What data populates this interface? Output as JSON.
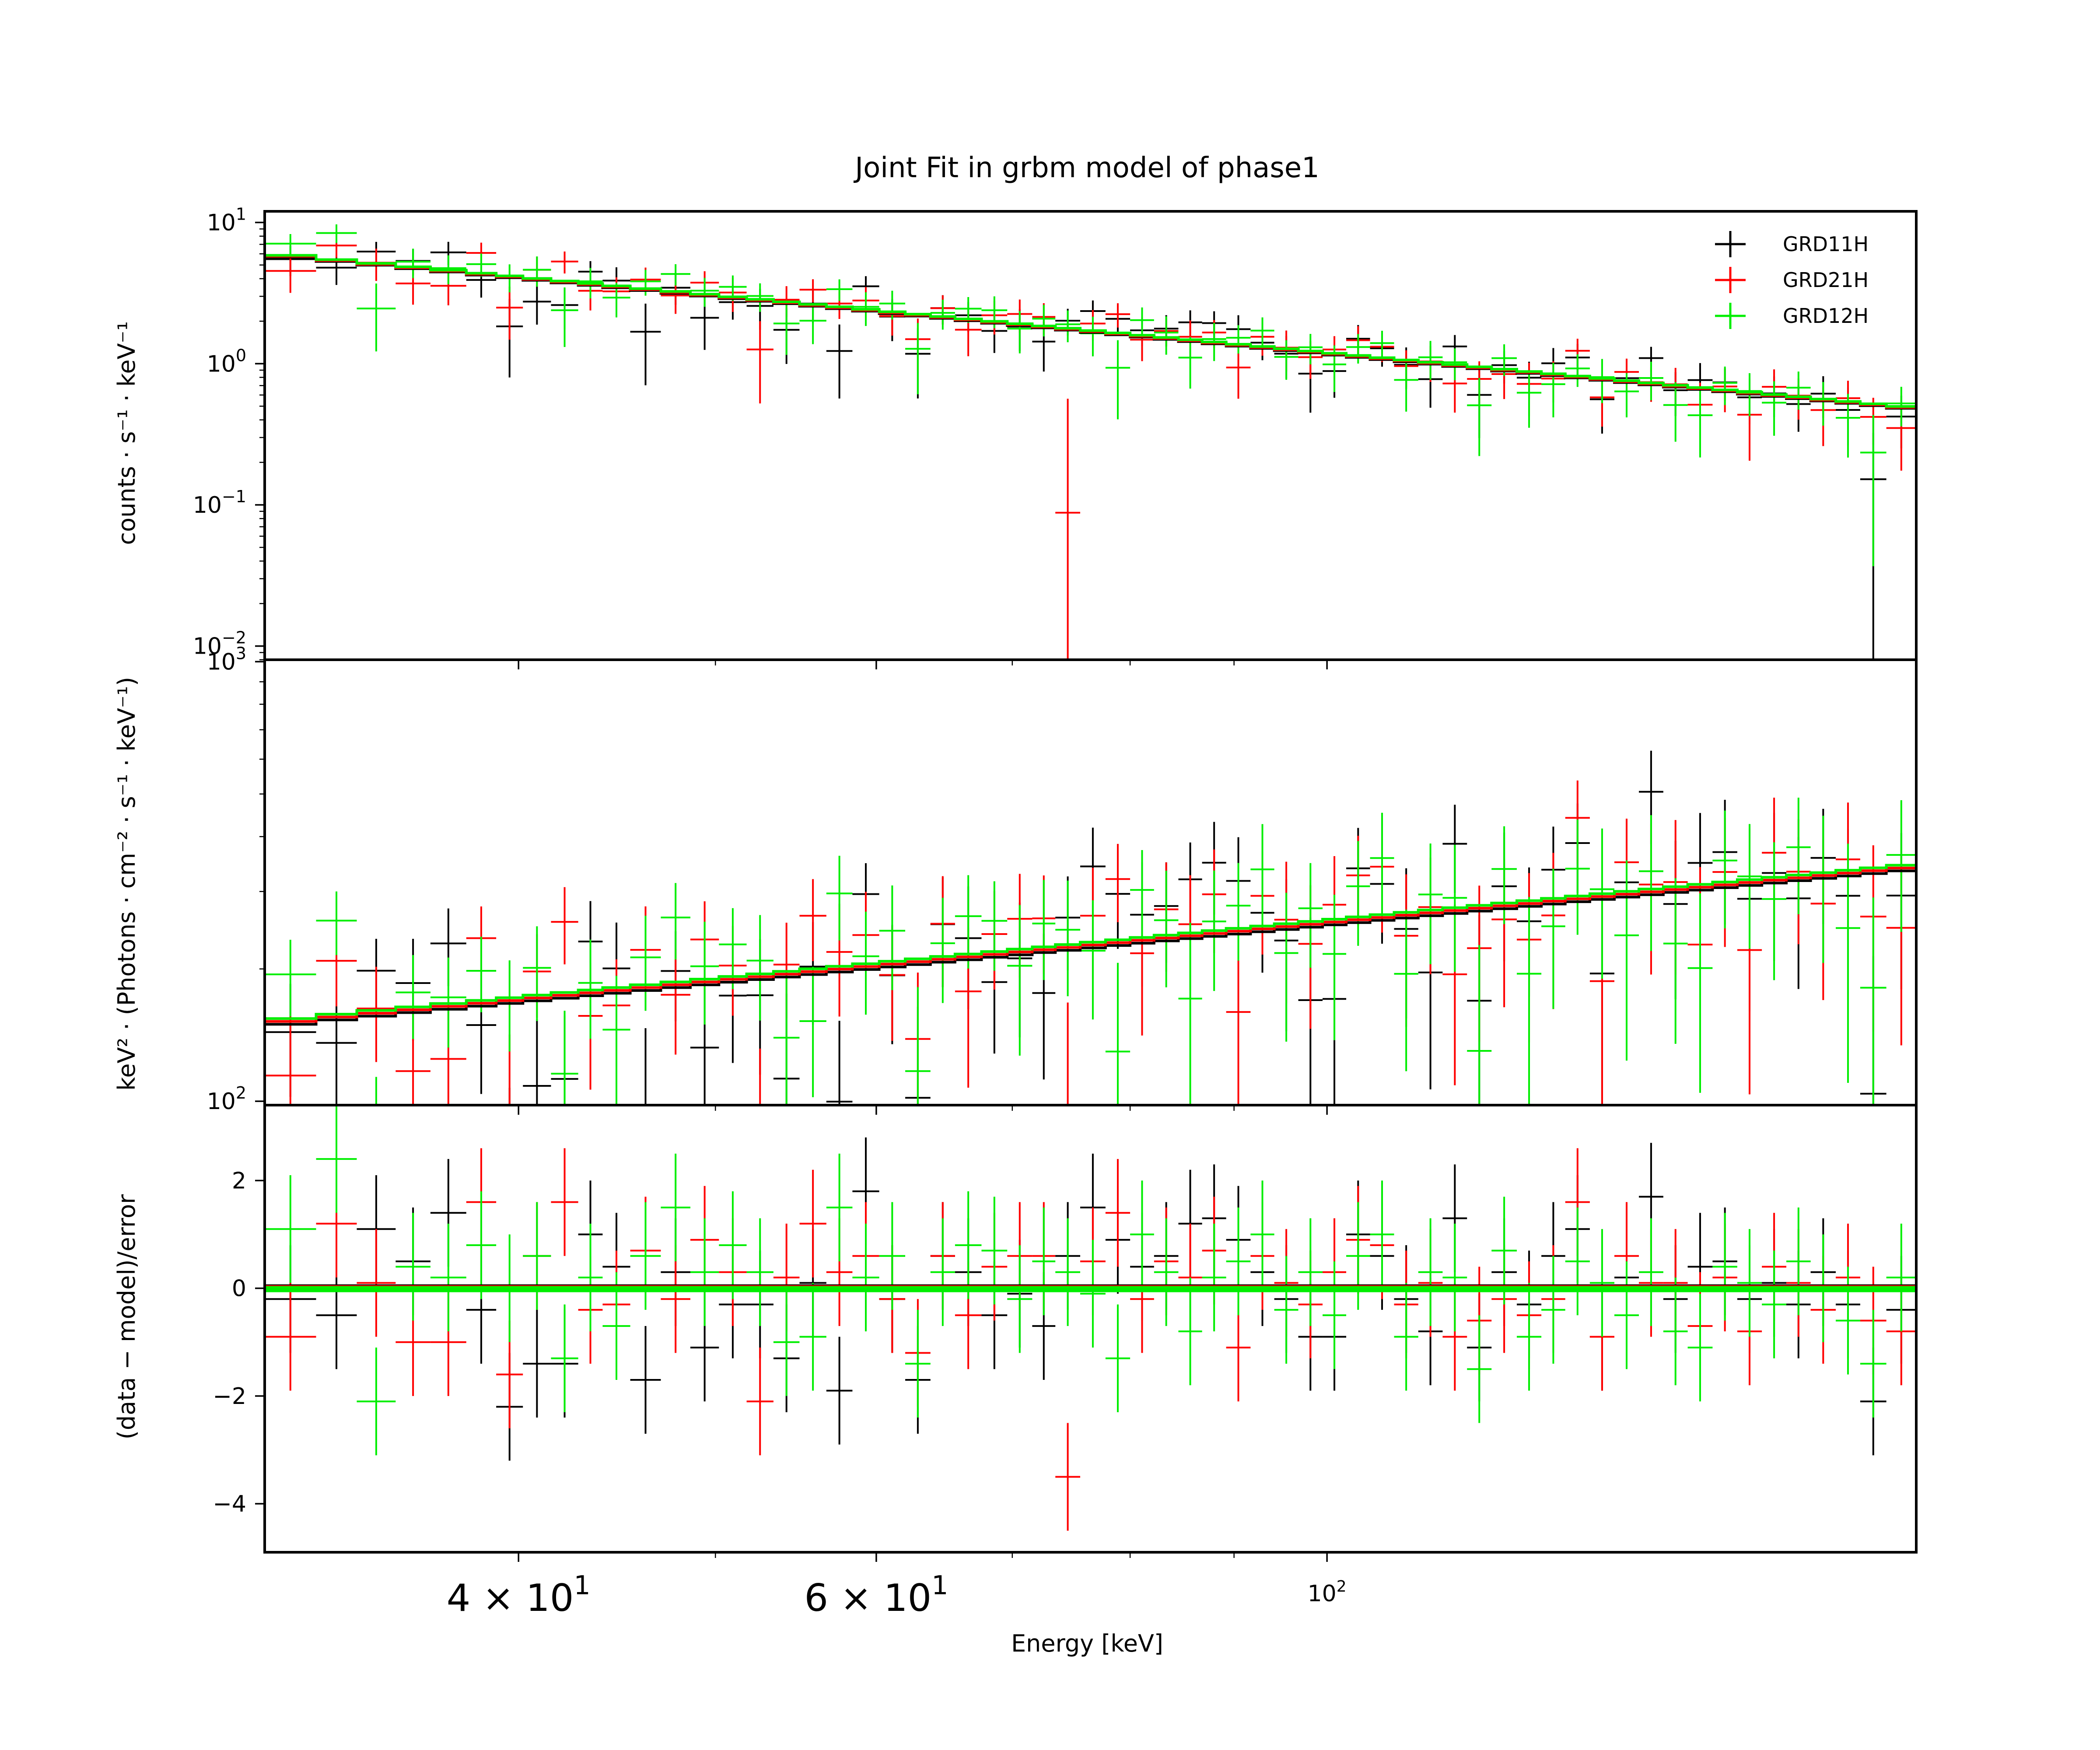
{
  "chart_data": {
    "type": "scatter",
    "title": "Joint Fit  in grbm model of phase1",
    "xlabel": "Energy [keV]",
    "xscale": "log",
    "xlim": [
      30,
      195
    ],
    "x_tick_labels": [
      {
        "value": 40,
        "label": "4 × 10",
        "exp": "1",
        "size": "large"
      },
      {
        "value": 60,
        "label": "6 × 10",
        "exp": "1",
        "size": "large"
      },
      {
        "value": 100,
        "label": "10",
        "exp": "2",
        "size": "small"
      }
    ],
    "legend": {
      "position": "top-right",
      "entries": [
        {
          "label": "GRD11H",
          "color": "#000000"
        },
        {
          "label": "GRD21H",
          "color": "#ff0000"
        },
        {
          "label": "GRD12H",
          "color": "#00ee00"
        }
      ]
    },
    "series_colors": {
      "GRD11H": "#000000",
      "GRD21H": "#ff0000",
      "GRD12H": "#00ee00"
    },
    "panels": [
      {
        "name": "counts",
        "ylabel": "counts · s⁻¹ · keV⁻¹",
        "yscale": "log",
        "ylim": [
          0.008,
          12
        ],
        "y_ticks": [
          {
            "value": 10,
            "label": "10",
            "exp": "1"
          },
          {
            "value": 1,
            "label": "10",
            "exp": "0"
          },
          {
            "value": 0.1,
            "label": "10",
            "exp": "−1"
          },
          {
            "value": 0.01,
            "label": "10",
            "exp": "−2"
          }
        ],
        "model": {
          "type": "powerlaw",
          "norm": 6.0,
          "pivot": 30,
          "index": -1.35
        }
      },
      {
        "name": "unfolded",
        "ylabel": "keV² · (Photons · cm⁻² · s⁻¹ · keV⁻¹)",
        "yscale": "log",
        "ylim": [
          98,
          1010
        ],
        "y_ticks": [
          {
            "value": 1000,
            "label": "10",
            "exp": "3"
          },
          {
            "value": 100,
            "label": "10",
            "exp": "2"
          }
        ],
        "model": {
          "type": "powerlaw",
          "norm": 150,
          "pivot": 30,
          "index": 0.44
        }
      },
      {
        "name": "residuals",
        "ylabel": "(data − model)/error",
        "yscale": "linear",
        "ylim": [
          -4.9,
          3.4
        ],
        "y_ticks": [
          {
            "value": 2,
            "label": "2"
          },
          {
            "value": 0,
            "label": "0"
          },
          {
            "value": -2,
            "label": "−2"
          },
          {
            "value": -4,
            "label": "−4"
          }
        ],
        "model": {
          "type": "zero"
        }
      }
    ],
    "bins": [
      {
        "lo": 30.0,
        "hi": 31.8,
        "res": {
          "GRD11H": -0.2,
          "GRD21H": -0.9,
          "GRD12H": 1.1
        }
      },
      {
        "lo": 31.8,
        "hi": 33.3,
        "res": {
          "GRD11H": -0.5,
          "GRD21H": 1.2,
          "GRD12H": 2.4
        }
      },
      {
        "lo": 33.3,
        "hi": 34.8,
        "res": {
          "GRD11H": 1.1,
          "GRD21H": 0.1,
          "GRD12H": -2.1
        }
      },
      {
        "lo": 34.8,
        "hi": 36.2,
        "res": {
          "GRD11H": 0.5,
          "GRD21H": -1.0,
          "GRD12H": 0.4
        }
      },
      {
        "lo": 36.2,
        "hi": 37.7,
        "res": {
          "GRD11H": 1.4,
          "GRD21H": -1.0,
          "GRD12H": 0.2
        }
      },
      {
        "lo": 37.7,
        "hi": 39.0,
        "res": {
          "GRD11H": -0.4,
          "GRD21H": 1.6,
          "GRD12H": 0.8
        }
      },
      {
        "lo": 39.0,
        "hi": 40.2,
        "res": {
          "GRD11H": -2.2,
          "GRD21H": -1.6,
          "GRD12H": 0.0
        }
      },
      {
        "lo": 40.2,
        "hi": 41.5,
        "res": {
          "GRD11H": -1.4,
          "GRD21H": 0.6,
          "GRD12H": 0.6
        }
      },
      {
        "lo": 41.5,
        "hi": 42.8,
        "res": {
          "GRD11H": -1.4,
          "GRD21H": 1.6,
          "GRD12H": -1.3
        }
      },
      {
        "lo": 42.8,
        "hi": 44.0,
        "res": {
          "GRD11H": 1.0,
          "GRD21H": -0.4,
          "GRD12H": 0.2
        }
      },
      {
        "lo": 44.0,
        "hi": 45.4,
        "res": {
          "GRD11H": 0.4,
          "GRD21H": -0.3,
          "GRD12H": -0.7
        }
      },
      {
        "lo": 45.4,
        "hi": 47.0,
        "res": {
          "GRD11H": -1.7,
          "GRD21H": 0.7,
          "GRD12H": 0.6
        }
      },
      {
        "lo": 47.0,
        "hi": 48.6,
        "res": {
          "GRD11H": 0.3,
          "GRD21H": -0.2,
          "GRD12H": 1.5
        }
      },
      {
        "lo": 48.6,
        "hi": 50.2,
        "res": {
          "GRD11H": -1.1,
          "GRD21H": 0.9,
          "GRD12H": 0.3
        }
      },
      {
        "lo": 50.2,
        "hi": 51.8,
        "res": {
          "GRD11H": -0.3,
          "GRD21H": 0.3,
          "GRD12H": 0.8
        }
      },
      {
        "lo": 51.8,
        "hi": 53.4,
        "res": {
          "GRD11H": -0.3,
          "GRD21H": -2.1,
          "GRD12H": 0.3
        }
      },
      {
        "lo": 53.4,
        "hi": 55.0,
        "res": {
          "GRD11H": -1.3,
          "GRD21H": 0.2,
          "GRD12H": -1.0
        }
      },
      {
        "lo": 55.0,
        "hi": 56.7,
        "res": {
          "GRD11H": 0.1,
          "GRD21H": 1.2,
          "GRD12H": -0.9
        }
      },
      {
        "lo": 56.7,
        "hi": 58.4,
        "res": {
          "GRD11H": -1.9,
          "GRD21H": 0.3,
          "GRD12H": 1.5
        }
      },
      {
        "lo": 58.4,
        "hi": 60.2,
        "res": {
          "GRD11H": 1.8,
          "GRD21H": 0.6,
          "GRD12H": 0.2
        }
      },
      {
        "lo": 60.2,
        "hi": 62.0,
        "res": {
          "GRD11H": -0.2,
          "GRD21H": -0.2,
          "GRD12H": 0.6
        }
      },
      {
        "lo": 62.0,
        "hi": 63.8,
        "res": {
          "GRD11H": -1.7,
          "GRD21H": -1.2,
          "GRD12H": -1.4
        }
      },
      {
        "lo": 63.8,
        "hi": 65.6,
        "res": {
          "GRD11H": 0.6,
          "GRD21H": 0.6,
          "GRD12H": 0.3
        }
      },
      {
        "lo": 65.6,
        "hi": 67.6,
        "res": {
          "GRD11H": 0.3,
          "GRD21H": -0.5,
          "GRD12H": 0.8
        }
      },
      {
        "lo": 67.6,
        "hi": 69.6,
        "res": {
          "GRD11H": -0.5,
          "GRD21H": 0.4,
          "GRD12H": 0.7
        }
      },
      {
        "lo": 69.6,
        "hi": 71.6,
        "res": {
          "GRD11H": -0.1,
          "GRD21H": 0.6,
          "GRD12H": -0.2
        }
      },
      {
        "lo": 71.6,
        "hi": 73.5,
        "res": {
          "GRD11H": -0.7,
          "GRD21H": 0.6,
          "GRD12H": 0.5
        }
      },
      {
        "lo": 73.5,
        "hi": 75.6,
        "res": {
          "GRD11H": 0.6,
          "GRD21H": -3.5,
          "GRD12H": 0.3
        }
      },
      {
        "lo": 75.6,
        "hi": 77.8,
        "res": {
          "GRD11H": 1.5,
          "GRD21H": 0.5,
          "GRD12H": -0.1
        }
      },
      {
        "lo": 77.8,
        "hi": 80.0,
        "res": {
          "GRD11H": 0.9,
          "GRD21H": 1.4,
          "GRD12H": -1.3
        }
      },
      {
        "lo": 80.0,
        "hi": 82.2,
        "res": {
          "GRD11H": 0.4,
          "GRD21H": -0.2,
          "GRD12H": 1.0
        }
      },
      {
        "lo": 82.2,
        "hi": 84.5,
        "res": {
          "GRD11H": 0.6,
          "GRD21H": 0.5,
          "GRD12H": 0.3
        }
      },
      {
        "lo": 84.5,
        "hi": 86.8,
        "res": {
          "GRD11H": 1.2,
          "GRD21H": 0.2,
          "GRD12H": -0.8
        }
      },
      {
        "lo": 86.8,
        "hi": 89.2,
        "res": {
          "GRD11H": 1.3,
          "GRD21H": 0.7,
          "GRD12H": 0.2
        }
      },
      {
        "lo": 89.2,
        "hi": 91.7,
        "res": {
          "GRD11H": 0.9,
          "GRD21H": -1.1,
          "GRD12H": 0.5
        }
      },
      {
        "lo": 91.7,
        "hi": 94.2,
        "res": {
          "GRD11H": 0.3,
          "GRD21H": 0.6,
          "GRD12H": 1.0
        }
      },
      {
        "lo": 94.2,
        "hi": 96.8,
        "res": {
          "GRD11H": -0.2,
          "GRD21H": 0.1,
          "GRD12H": -0.4
        }
      },
      {
        "lo": 96.8,
        "hi": 99.5,
        "res": {
          "GRD11H": -0.9,
          "GRD21H": -0.3,
          "GRD12H": 0.3
        }
      },
      {
        "lo": 99.5,
        "hi": 102.2,
        "res": {
          "GRD11H": -0.9,
          "GRD21H": 0.3,
          "GRD12H": -0.5
        }
      },
      {
        "lo": 102.2,
        "hi": 105.0,
        "res": {
          "GRD11H": 1.0,
          "GRD21H": 0.9,
          "GRD12H": 0.6
        }
      },
      {
        "lo": 105.0,
        "hi": 107.9,
        "res": {
          "GRD11H": 0.6,
          "GRD21H": 0.8,
          "GRD12H": 1.0
        }
      },
      {
        "lo": 107.9,
        "hi": 110.9,
        "res": {
          "GRD11H": -0.2,
          "GRD21H": -0.3,
          "GRD12H": -0.9
        }
      },
      {
        "lo": 110.9,
        "hi": 114.0,
        "res": {
          "GRD11H": -0.8,
          "GRD21H": 0.1,
          "GRD12H": 0.3
        }
      },
      {
        "lo": 114.0,
        "hi": 117.2,
        "res": {
          "GRD11H": 1.3,
          "GRD21H": -0.9,
          "GRD12H": 0.2
        }
      },
      {
        "lo": 117.2,
        "hi": 120.5,
        "res": {
          "GRD11H": -1.1,
          "GRD21H": -0.6,
          "GRD12H": -1.5
        }
      },
      {
        "lo": 120.5,
        "hi": 124.0,
        "res": {
          "GRD11H": 0.3,
          "GRD21H": -0.2,
          "GRD12H": 0.7
        }
      },
      {
        "lo": 124.0,
        "hi": 127.5,
        "res": {
          "GRD11H": -0.3,
          "GRD21H": -0.5,
          "GRD12H": -0.9
        }
      },
      {
        "lo": 127.5,
        "hi": 131.0,
        "res": {
          "GRD11H": 0.6,
          "GRD21H": -0.2,
          "GRD12H": -0.4
        }
      },
      {
        "lo": 131.0,
        "hi": 134.7,
        "res": {
          "GRD11H": 1.1,
          "GRD21H": 1.6,
          "GRD12H": 0.5
        }
      },
      {
        "lo": 134.7,
        "hi": 138.5,
        "res": {
          "GRD11H": -0.9,
          "GRD21H": -0.9,
          "GRD12H": 0.1
        }
      },
      {
        "lo": 138.5,
        "hi": 142.4,
        "res": {
          "GRD11H": 0.2,
          "GRD21H": 0.6,
          "GRD12H": -0.5
        }
      },
      {
        "lo": 142.4,
        "hi": 146.4,
        "res": {
          "GRD11H": 1.7,
          "GRD21H": 0.1,
          "GRD12H": 0.3
        }
      },
      {
        "lo": 146.4,
        "hi": 150.5,
        "res": {
          "GRD11H": -0.2,
          "GRD21H": 0.1,
          "GRD12H": -0.8
        }
      },
      {
        "lo": 150.5,
        "hi": 154.8,
        "res": {
          "GRD11H": 0.4,
          "GRD21H": -0.7,
          "GRD12H": -1.1
        }
      },
      {
        "lo": 154.8,
        "hi": 159.2,
        "res": {
          "GRD11H": 0.5,
          "GRD21H": 0.2,
          "GRD12H": 0.4
        }
      },
      {
        "lo": 159.2,
        "hi": 163.7,
        "res": {
          "GRD11H": -0.2,
          "GRD21H": -0.8,
          "GRD12H": 0.1
        }
      },
      {
        "lo": 163.7,
        "hi": 168.3,
        "res": {
          "GRD11H": 0.1,
          "GRD21H": 0.4,
          "GRD12H": -0.3
        }
      },
      {
        "lo": 168.3,
        "hi": 173.0,
        "res": {
          "GRD11H": -0.3,
          "GRD21H": 0.1,
          "GRD12H": 0.5
        }
      },
      {
        "lo": 173.0,
        "hi": 178.0,
        "res": {
          "GRD11H": 0.3,
          "GRD21H": -0.4,
          "GRD12H": 0.0
        }
      },
      {
        "lo": 178.0,
        "hi": 183.0,
        "res": {
          "GRD11H": -0.3,
          "GRD21H": 0.2,
          "GRD12H": -0.6
        }
      },
      {
        "lo": 183.0,
        "hi": 188.5,
        "res": {
          "GRD11H": -2.1,
          "GRD21H": -0.6,
          "GRD12H": -1.4
        }
      },
      {
        "lo": 188.5,
        "hi": 195.0,
        "res": {
          "GRD11H": -0.4,
          "GRD21H": -0.8,
          "GRD12H": 0.2
        }
      }
    ]
  }
}
